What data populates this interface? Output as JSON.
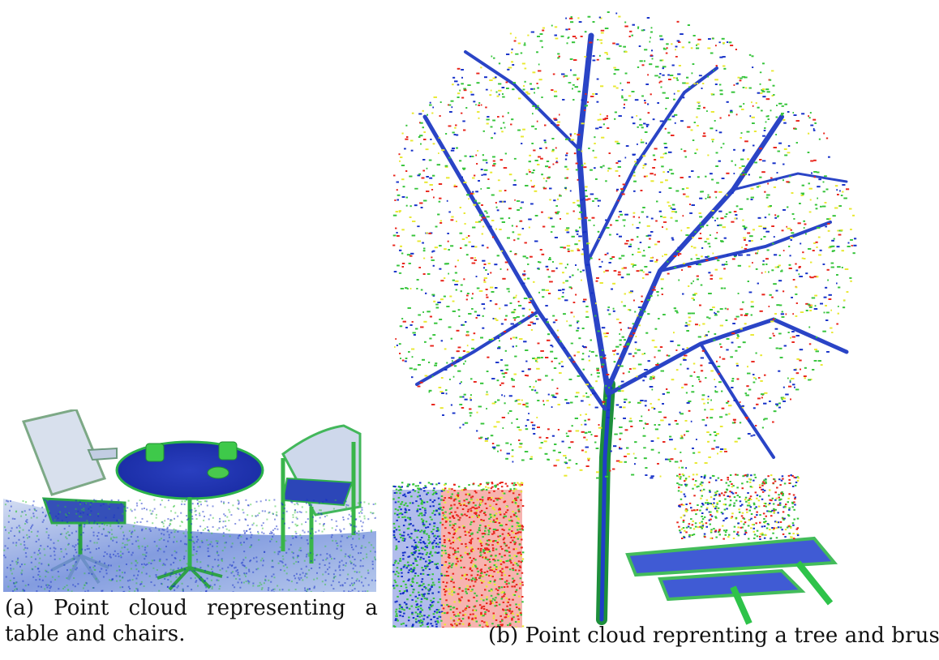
{
  "figures": {
    "a": {
      "caption_label": "(a)",
      "caption_text": "Point cloud representing a table and chairs."
    },
    "b": {
      "caption_label": "(b)",
      "caption_text": "Point cloud reprenting a tree and brushes."
    }
  },
  "colors": {
    "blue": "#1530c8",
    "green": "#35c43a",
    "yellow": "#e8e830",
    "red": "#e8241a",
    "table_top": "#1d3fb8",
    "floor_tint": "#5e7fd6"
  }
}
